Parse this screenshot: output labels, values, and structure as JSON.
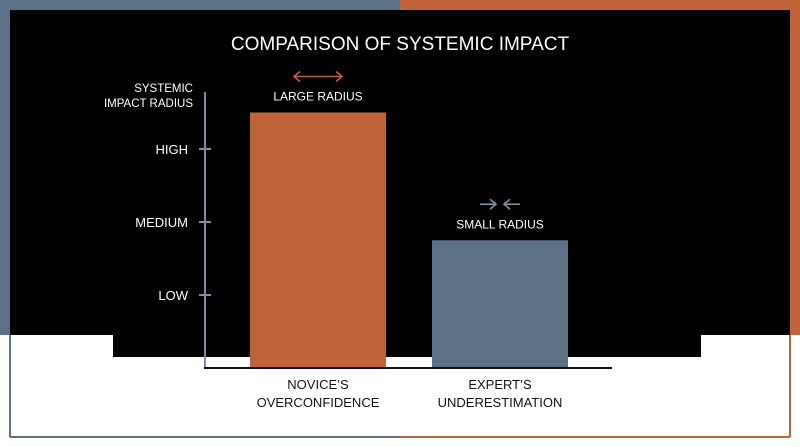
{
  "colors": {
    "background": "#000000",
    "page": "#ffffff",
    "accent_left": "#5b7188",
    "accent_right": "#c0623a",
    "text": "#ffffff",
    "axis": "#7f8fa3",
    "label_dark": "#111111"
  },
  "chart_data": {
    "type": "bar",
    "title": "COMPARISON OF SYSTEMIC IMPACT",
    "ylabel": "SYSTEMIC IMPACT RADIUS",
    "ylabel_lines": [
      "SYSTEMIC",
      "IMPACT RADIUS"
    ],
    "yticks": [
      {
        "label": "LOW",
        "value": 1
      },
      {
        "label": "MEDIUM",
        "value": 2
      },
      {
        "label": "HIGH",
        "value": 3
      }
    ],
    "ylim": [
      0,
      4
    ],
    "categories": [
      {
        "lines": [
          "NOVICE’S",
          "OVERCONFIDENCE"
        ],
        "full": "NOVICE’S OVERCONFIDENCE"
      },
      {
        "lines": [
          "EXPERT’S",
          "UNDERESTIMATION"
        ],
        "full": "EXPERT’S UNDERESTIMATION"
      }
    ],
    "values": [
      3.5,
      1.75
    ],
    "bar_colors": [
      "#c0623a",
      "#5b7188"
    ],
    "annotations": [
      {
        "text": "LARGE RADIUS",
        "icon": "arrows-outward-icon",
        "color": "#c0623a"
      },
      {
        "text": "SMALL RADIUS",
        "icon": "arrows-inward-icon",
        "color": "#7f8fa3"
      }
    ],
    "grid": false,
    "legend": "none"
  }
}
